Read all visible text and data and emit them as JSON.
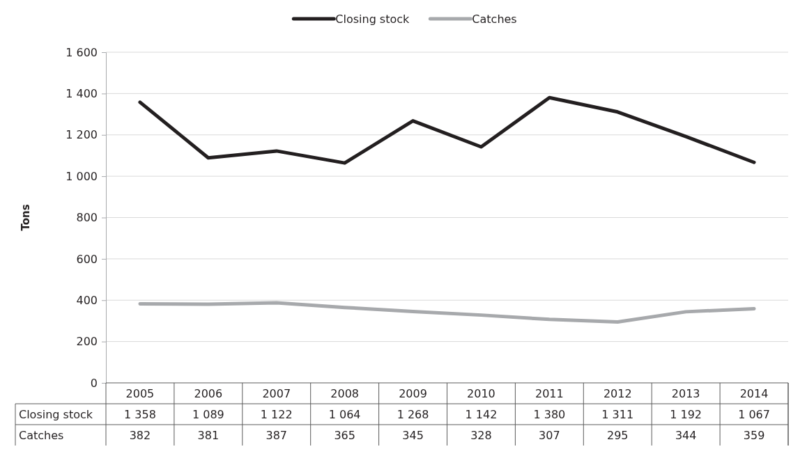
{
  "chart_data": {
    "type": "line",
    "ylabel": "Tons",
    "legend": "top",
    "grid": "y",
    "categories": [
      "2005",
      "2006",
      "2007",
      "2008",
      "2009",
      "2010",
      "2011",
      "2012",
      "2013",
      "2014"
    ],
    "ylim": [
      0,
      1600
    ],
    "yticks": [
      0,
      {
        "value": 200,
        "label": "200"
      },
      {
        "value": 400,
        "label": "400"
      },
      {
        "value": 600,
        "label": "600"
      },
      {
        "value": 800,
        "label": "800"
      },
      {
        "value": 1000,
        "label": "1 000"
      },
      {
        "value": 1200,
        "label": "1 200"
      },
      {
        "value": 1400,
        "label": "1 400"
      },
      {
        "value": 1600,
        "label": "1 600"
      }
    ],
    "series": [
      {
        "name": "Closing stock",
        "color": "#231f20",
        "values": [
          1358,
          1089,
          1122,
          1064,
          1268,
          1142,
          1380,
          1311,
          1192,
          1067
        ],
        "value_labels": [
          "1 358",
          "1 089",
          "1 122",
          "1 064",
          "1 268",
          "1 142",
          "1 380",
          "1 311",
          "1 192",
          "1 067"
        ]
      },
      {
        "name": "Catches",
        "color": "#a7a9ac",
        "values": [
          382,
          381,
          387,
          365,
          345,
          328,
          307,
          295,
          344,
          359
        ],
        "value_labels": [
          "382",
          "381",
          "387",
          "365",
          "345",
          "328",
          "307",
          "295",
          "344",
          "359"
        ]
      }
    ]
  }
}
